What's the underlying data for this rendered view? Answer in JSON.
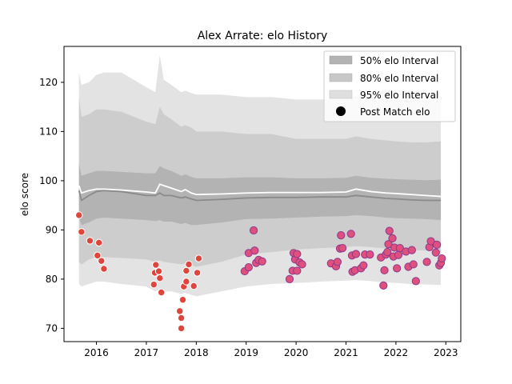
{
  "chart_data": {
    "type": "scatter",
    "title": "Alex Arrate: elo History",
    "xlabel": "",
    "ylabel": "elo score",
    "xlim": [
      2015.35,
      2023.3
    ],
    "ylim": [
      67.3,
      127.3
    ],
    "x_ticks": [
      2016,
      2017,
      2018,
      2019,
      2020,
      2021,
      2022,
      2023
    ],
    "x_tick_labels": [
      "2016",
      "2017",
      "2018",
      "2019",
      "2020",
      "2021",
      "2022",
      "2023"
    ],
    "y_ticks": [
      70,
      80,
      90,
      100,
      110,
      120
    ],
    "y_tick_labels": [
      "70",
      "80",
      "90",
      "100",
      "110",
      "120"
    ],
    "grid": false,
    "legend_position": "upper right",
    "legend": [
      {
        "label": "50% elo Interval",
        "kind": "band",
        "color": "#b3b3b3"
      },
      {
        "label": "80% elo Interval",
        "kind": "band",
        "color": "#c8c8c8"
      },
      {
        "label": "95% elo Interval",
        "kind": "band",
        "color": "#dfdfdf"
      },
      {
        "label": "Post Match elo",
        "kind": "marker",
        "color": "#000000"
      }
    ],
    "colors": {
      "band95": "#e3e3e3",
      "band80": "#cdcdcd",
      "band50": "#b3b3b3",
      "median_line": "#8a8a8a",
      "mean_line": "#ffffff",
      "points_early": "#e0443a",
      "points_late": "#e0507f",
      "point_edge_early": "#ffffff",
      "point_edge_late": "#8a3a8a"
    },
    "bands": {
      "x": [
        2015.65,
        2015.7,
        2015.85,
        2016.0,
        2016.15,
        2016.5,
        2017.0,
        2017.18,
        2017.27,
        2017.35,
        2017.5,
        2017.7,
        2017.78,
        2017.9,
        2018.0,
        2018.5,
        2019.0,
        2019.5,
        2020.0,
        2020.5,
        2021.0,
        2021.2,
        2021.5,
        2021.8,
        2022.0,
        2022.3,
        2022.6,
        2022.9
      ],
      "p95_hi": [
        122.0,
        119.5,
        120.0,
        121.5,
        122.0,
        122.0,
        119.0,
        118.0,
        125.5,
        120.5,
        119.5,
        118.0,
        118.3,
        117.8,
        117.5,
        117.5,
        117.0,
        117.0,
        116.5,
        116.5,
        116.7,
        117.2,
        116.8,
        116.5,
        116.5,
        116.3,
        116.3,
        116.5
      ],
      "p80_hi": [
        117.0,
        113.0,
        113.5,
        114.5,
        114.5,
        114.0,
        112.0,
        111.5,
        115.0,
        113.5,
        112.5,
        111.0,
        111.3,
        110.8,
        110.0,
        110.0,
        109.5,
        109.5,
        108.5,
        108.5,
        108.5,
        109.0,
        108.5,
        108.2,
        108.0,
        107.8,
        107.8,
        108.0
      ],
      "p50_hi": [
        103.5,
        101.0,
        101.5,
        102.0,
        102.0,
        101.8,
        101.5,
        101.5,
        103.0,
        102.5,
        102.0,
        101.0,
        101.3,
        100.8,
        100.5,
        100.5,
        100.7,
        100.7,
        100.5,
        100.5,
        100.6,
        101.0,
        100.6,
        100.4,
        100.3,
        100.2,
        100.1,
        100.2
      ],
      "median": [
        98.0,
        96.0,
        97.0,
        97.8,
        98.0,
        97.8,
        97.0,
        97.0,
        97.5,
        97.0,
        97.0,
        96.5,
        96.7,
        96.3,
        96.0,
        96.2,
        96.5,
        96.6,
        96.6,
        96.7,
        96.7,
        97.0,
        96.7,
        96.4,
        96.3,
        96.1,
        96.0,
        96.0
      ],
      "mean": [
        99.0,
        97.5,
        98.0,
        98.3,
        98.3,
        98.1,
        97.7,
        97.5,
        99.3,
        99.0,
        98.5,
        97.8,
        98.2,
        97.5,
        97.2,
        97.3,
        97.5,
        97.6,
        97.6,
        97.6,
        97.7,
        98.3,
        97.8,
        97.5,
        97.4,
        97.2,
        97.0,
        96.8
      ],
      "p50_lo": [
        92.5,
        91.0,
        91.5,
        92.3,
        92.5,
        92.3,
        92.0,
        91.8,
        92.0,
        91.7,
        91.7,
        91.2,
        91.4,
        91.0,
        91.0,
        91.5,
        92.2,
        92.3,
        92.5,
        92.7,
        92.8,
        93.0,
        92.8,
        92.5,
        92.4,
        92.3,
        92.2,
        92.0
      ],
      "p80_lo": [
        83.5,
        83.0,
        84.0,
        84.5,
        84.5,
        84.3,
        84.0,
        83.5,
        83.8,
        83.5,
        83.3,
        83.0,
        83.2,
        82.8,
        82.5,
        83.5,
        85.0,
        85.5,
        86.0,
        86.3,
        86.5,
        86.7,
        86.5,
        86.2,
        86.0,
        85.9,
        85.8,
        85.5
      ],
      "p95_lo": [
        79.0,
        78.5,
        79.0,
        79.5,
        79.5,
        79.0,
        78.5,
        77.5,
        78.0,
        77.5,
        77.5,
        77.0,
        77.2,
        76.8,
        76.5,
        77.5,
        78.5,
        79.0,
        79.2,
        79.5,
        79.7,
        79.8,
        79.6,
        79.3,
        79.2,
        79.0,
        78.9,
        78.8
      ]
    },
    "points_early": [
      [
        2015.65,
        93.0
      ],
      [
        2015.7,
        89.6
      ],
      [
        2015.87,
        87.8
      ],
      [
        2016.05,
        87.4
      ],
      [
        2016.02,
        84.8
      ],
      [
        2016.1,
        83.7
      ],
      [
        2016.15,
        82.1
      ],
      [
        2017.15,
        78.9
      ],
      [
        2017.17,
        81.3
      ],
      [
        2017.19,
        82.9
      ],
      [
        2017.25,
        81.6
      ],
      [
        2017.27,
        80.2
      ],
      [
        2017.3,
        77.3
      ],
      [
        2017.67,
        73.5
      ],
      [
        2017.7,
        72.1
      ],
      [
        2017.7,
        70.0
      ],
      [
        2017.73,
        75.8
      ],
      [
        2017.75,
        78.5
      ],
      [
        2017.8,
        79.5
      ],
      [
        2017.8,
        81.7
      ],
      [
        2017.85,
        83.0
      ],
      [
        2017.95,
        78.6
      ],
      [
        2018.02,
        81.3
      ],
      [
        2018.05,
        84.2
      ]
    ],
    "points_late": [
      [
        2018.97,
        81.6
      ],
      [
        2019.05,
        82.4
      ],
      [
        2019.05,
        85.3
      ],
      [
        2019.15,
        89.9
      ],
      [
        2019.17,
        85.8
      ],
      [
        2019.2,
        83.3
      ],
      [
        2019.25,
        83.9
      ],
      [
        2019.32,
        83.6
      ],
      [
        2019.87,
        80.0
      ],
      [
        2019.93,
        81.7
      ],
      [
        2019.95,
        85.3
      ],
      [
        2019.98,
        84.0
      ],
      [
        2020.02,
        81.7
      ],
      [
        2020.02,
        85.1
      ],
      [
        2020.07,
        83.4
      ],
      [
        2020.12,
        83.0
      ],
      [
        2020.7,
        83.2
      ],
      [
        2020.8,
        82.6
      ],
      [
        2020.83,
        83.5
      ],
      [
        2020.88,
        86.2
      ],
      [
        2020.9,
        88.9
      ],
      [
        2020.93,
        86.3
      ],
      [
        2021.1,
        89.2
      ],
      [
        2021.12,
        84.8
      ],
      [
        2021.13,
        81.5
      ],
      [
        2021.18,
        81.8
      ],
      [
        2021.2,
        85.1
      ],
      [
        2021.3,
        82.2
      ],
      [
        2021.35,
        82.8
      ],
      [
        2021.38,
        85.0
      ],
      [
        2021.48,
        85.0
      ],
      [
        2021.7,
        84.4
      ],
      [
        2021.75,
        78.7
      ],
      [
        2021.77,
        81.8
      ],
      [
        2021.8,
        85.0
      ],
      [
        2021.83,
        85.5
      ],
      [
        2021.85,
        87.1
      ],
      [
        2021.87,
        89.8
      ],
      [
        2021.93,
        88.3
      ],
      [
        2021.95,
        84.6
      ],
      [
        2021.97,
        86.4
      ],
      [
        2022.02,
        82.2
      ],
      [
        2022.05,
        84.9
      ],
      [
        2022.08,
        86.3
      ],
      [
        2022.2,
        85.6
      ],
      [
        2022.25,
        82.5
      ],
      [
        2022.32,
        85.9
      ],
      [
        2022.35,
        83.0
      ],
      [
        2022.4,
        79.6
      ],
      [
        2022.62,
        83.5
      ],
      [
        2022.67,
        86.5
      ],
      [
        2022.7,
        87.7
      ],
      [
        2022.8,
        85.4
      ],
      [
        2022.82,
        87.0
      ],
      [
        2022.87,
        82.8
      ],
      [
        2022.9,
        83.3
      ],
      [
        2022.92,
        84.2
      ]
    ]
  }
}
